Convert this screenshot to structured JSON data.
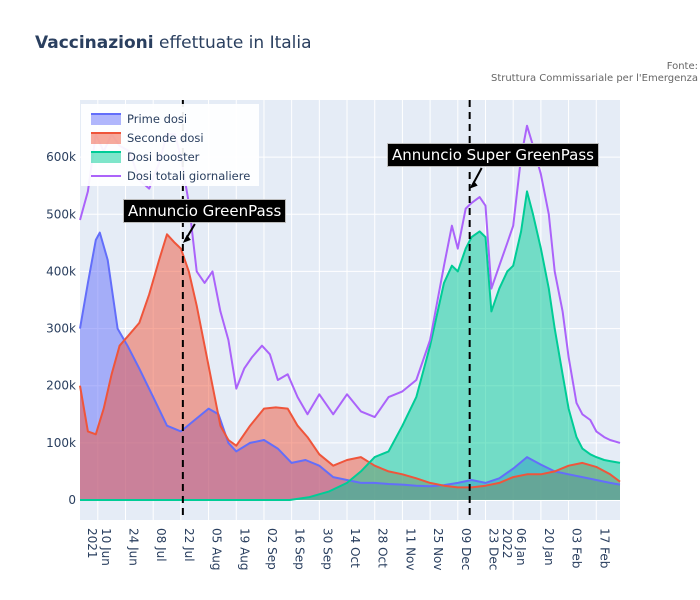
{
  "title": {
    "bold": "Vaccinazioni",
    "rest": " effettuate in Italia"
  },
  "source": {
    "line1": "Fonte:",
    "line2": "Struttura Commissariale per l'Emergenza"
  },
  "chart_data": {
    "type": "area",
    "y_ticks": [
      0,
      100000,
      200000,
      300000,
      400000,
      500000,
      600000
    ],
    "y_tick_labels": [
      "0",
      "100k",
      "200k",
      "300k",
      "400k",
      "500k",
      "600k"
    ],
    "ylim": [
      -35000,
      700000
    ],
    "x_tick_labels": [
      [
        "10 Jun",
        "2021"
      ],
      [
        "24 Jun"
      ],
      [
        "08 Jul"
      ],
      [
        "22 Jul"
      ],
      [
        "05 Aug"
      ],
      [
        "19 Aug"
      ],
      [
        "02 Sep"
      ],
      [
        "16 Sep"
      ],
      [
        "30 Sep"
      ],
      [
        "14 Oct"
      ],
      [
        "28 Oct"
      ],
      [
        "11 Nov"
      ],
      [
        "25 Nov"
      ],
      [
        "09 Dec"
      ],
      [
        "23 Dec"
      ],
      [
        "06 Jan",
        "2022"
      ],
      [
        "20 Jan"
      ],
      [
        "03 Feb"
      ],
      [
        "17 Feb"
      ]
    ],
    "x_tick_dates": [
      "2021-06-10",
      "2021-06-24",
      "2021-07-08",
      "2021-07-22",
      "2021-08-05",
      "2021-08-19",
      "2021-09-02",
      "2021-09-16",
      "2021-09-30",
      "2021-10-14",
      "2021-10-28",
      "2021-11-11",
      "2021-11-25",
      "2021-12-09",
      "2021-12-23",
      "2022-01-06",
      "2022-01-20",
      "2022-02-03",
      "2022-02-17"
    ],
    "xlim": [
      "2021-06-01",
      "2022-03-01"
    ],
    "series": [
      {
        "name": "Prime dosi",
        "color": "#636efa",
        "x": [
          "2021-06-01",
          "2021-06-05",
          "2021-06-09",
          "2021-06-11",
          "2021-06-15",
          "2021-06-20",
          "2021-06-25",
          "2021-07-01",
          "2021-07-08",
          "2021-07-15",
          "2021-07-22",
          "2021-07-29",
          "2021-08-05",
          "2021-08-10",
          "2021-08-15",
          "2021-08-19",
          "2021-08-26",
          "2021-09-02",
          "2021-09-09",
          "2021-09-16",
          "2021-09-23",
          "2021-09-30",
          "2021-10-07",
          "2021-10-14",
          "2021-10-21",
          "2021-10-28",
          "2021-11-04",
          "2021-11-11",
          "2021-11-18",
          "2021-11-25",
          "2021-12-02",
          "2021-12-09",
          "2021-12-16",
          "2021-12-23",
          "2021-12-30",
          "2022-01-06",
          "2022-01-13",
          "2022-01-20",
          "2022-01-27",
          "2022-02-03",
          "2022-02-10",
          "2022-02-17",
          "2022-02-24",
          "2022-03-01"
        ],
        "y": [
          300000,
          380000,
          455000,
          468000,
          420000,
          300000,
          270000,
          230000,
          180000,
          130000,
          120000,
          140000,
          160000,
          150000,
          100000,
          85000,
          100000,
          105000,
          90000,
          65000,
          70000,
          60000,
          40000,
          35000,
          30000,
          30000,
          28000,
          27000,
          25000,
          24000,
          26000,
          30000,
          35000,
          30000,
          38000,
          55000,
          75000,
          62000,
          50000,
          45000,
          40000,
          35000,
          30000,
          27000
        ]
      },
      {
        "name": "Seconde dosi",
        "color": "#ef553b",
        "x": [
          "2021-06-01",
          "2021-06-05",
          "2021-06-09",
          "2021-06-13",
          "2021-06-17",
          "2021-06-21",
          "2021-06-26",
          "2021-07-01",
          "2021-07-06",
          "2021-07-11",
          "2021-07-15",
          "2021-07-19",
          "2021-07-22",
          "2021-07-26",
          "2021-07-30",
          "2021-08-03",
          "2021-08-07",
          "2021-08-11",
          "2021-08-15",
          "2021-08-19",
          "2021-08-26",
          "2021-09-02",
          "2021-09-08",
          "2021-09-14",
          "2021-09-19",
          "2021-09-24",
          "2021-09-30",
          "2021-10-07",
          "2021-10-14",
          "2021-10-21",
          "2021-10-28",
          "2021-11-04",
          "2021-11-11",
          "2021-11-18",
          "2021-11-25",
          "2021-12-02",
          "2021-12-09",
          "2021-12-16",
          "2021-12-23",
          "2021-12-30",
          "2022-01-06",
          "2022-01-13",
          "2022-01-20",
          "2022-01-27",
          "2022-02-03",
          "2022-02-10",
          "2022-02-17",
          "2022-02-24",
          "2022-03-01"
        ],
        "y": [
          200000,
          120000,
          115000,
          160000,
          220000,
          270000,
          290000,
          310000,
          360000,
          420000,
          465000,
          450000,
          440000,
          400000,
          340000,
          270000,
          200000,
          130000,
          105000,
          95000,
          130000,
          160000,
          162000,
          160000,
          130000,
          110000,
          80000,
          60000,
          70000,
          75000,
          60000,
          50000,
          45000,
          38000,
          30000,
          25000,
          22000,
          22000,
          25000,
          30000,
          40000,
          45000,
          45000,
          50000,
          60000,
          65000,
          58000,
          45000,
          32000
        ]
      },
      {
        "name": "Dosi booster",
        "color": "#00cc96",
        "x": [
          "2021-06-01",
          "2021-09-15",
          "2021-09-25",
          "2021-10-05",
          "2021-10-14",
          "2021-10-21",
          "2021-10-28",
          "2021-11-04",
          "2021-11-11",
          "2021-11-18",
          "2021-11-25",
          "2021-12-02",
          "2021-12-06",
          "2021-12-09",
          "2021-12-13",
          "2021-12-16",
          "2021-12-20",
          "2021-12-23",
          "2021-12-26",
          "2021-12-30",
          "2022-01-03",
          "2022-01-06",
          "2022-01-10",
          "2022-01-13",
          "2022-01-16",
          "2022-01-20",
          "2022-01-24",
          "2022-01-27",
          "2022-01-31",
          "2022-02-03",
          "2022-02-07",
          "2022-02-10",
          "2022-02-14",
          "2022-02-17",
          "2022-02-21",
          "2022-02-24",
          "2022-03-01"
        ],
        "y": [
          0,
          0,
          5000,
          15000,
          30000,
          50000,
          75000,
          85000,
          130000,
          180000,
          270000,
          380000,
          410000,
          400000,
          440000,
          460000,
          470000,
          460000,
          330000,
          370000,
          400000,
          410000,
          470000,
          540000,
          500000,
          440000,
          370000,
          300000,
          220000,
          160000,
          110000,
          90000,
          80000,
          75000,
          70000,
          68000,
          65000
        ]
      },
      {
        "name": "Dosi totali giornaliere",
        "color": "#ab63fa",
        "x": [
          "2021-06-01",
          "2021-06-05",
          "2021-06-09",
          "2021-06-13",
          "2021-06-17",
          "2021-06-21",
          "2021-06-26",
          "2021-07-01",
          "2021-07-06",
          "2021-07-11",
          "2021-07-15",
          "2021-07-19",
          "2021-07-22",
          "2021-07-26",
          "2021-07-30",
          "2021-08-03",
          "2021-08-07",
          "2021-08-11",
          "2021-08-15",
          "2021-08-19",
          "2021-08-23",
          "2021-08-27",
          "2021-09-01",
          "2021-09-05",
          "2021-09-09",
          "2021-09-14",
          "2021-09-19",
          "2021-09-24",
          "2021-09-30",
          "2021-10-07",
          "2021-10-14",
          "2021-10-21",
          "2021-10-28",
          "2021-11-04",
          "2021-11-11",
          "2021-11-18",
          "2021-11-25",
          "2021-12-02",
          "2021-12-06",
          "2021-12-09",
          "2021-12-13",
          "2021-12-16",
          "2021-12-20",
          "2021-12-23",
          "2021-12-26",
          "2021-12-30",
          "2022-01-03",
          "2022-01-06",
          "2022-01-10",
          "2022-01-13",
          "2022-01-16",
          "2022-01-20",
          "2022-01-24",
          "2022-01-27",
          "2022-01-31",
          "2022-02-03",
          "2022-02-07",
          "2022-02-10",
          "2022-02-14",
          "2022-02-17",
          "2022-02-21",
          "2022-02-24",
          "2022-03-01"
        ],
        "y": [
          490000,
          540000,
          640000,
          610000,
          640000,
          620000,
          610000,
          560000,
          545000,
          590000,
          640000,
          640000,
          600000,
          520000,
          400000,
          380000,
          400000,
          330000,
          280000,
          195000,
          230000,
          250000,
          270000,
          255000,
          210000,
          220000,
          180000,
          150000,
          185000,
          150000,
          185000,
          155000,
          145000,
          180000,
          190000,
          210000,
          280000,
          410000,
          480000,
          440000,
          510000,
          520000,
          530000,
          515000,
          370000,
          410000,
          450000,
          480000,
          600000,
          655000,
          620000,
          570000,
          500000,
          400000,
          330000,
          250000,
          170000,
          150000,
          140000,
          120000,
          110000,
          105000,
          100000
        ]
      }
    ],
    "vlines": [
      "2021-07-23",
      "2021-12-15"
    ],
    "annotations": [
      {
        "text": "Annuncio GreenPass",
        "x": "2021-07-23",
        "y": 450000
      },
      {
        "text": "Annuncio Super GreenPass",
        "x": "2021-12-15",
        "y": 545000
      }
    ],
    "legend_position": "top-left"
  }
}
